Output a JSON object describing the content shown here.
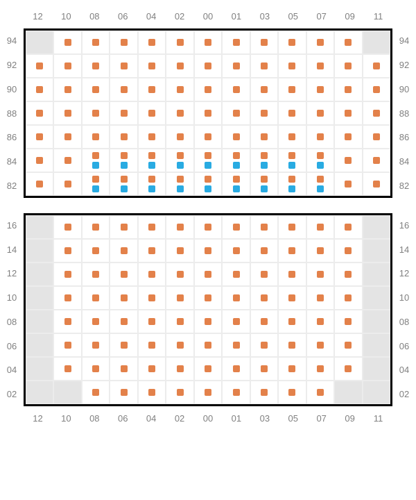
{
  "colors": {
    "orange": "#e3814a",
    "blue": "#29abe2",
    "disabled_bg": "#e4e4e4",
    "grid_line": "#ececec",
    "frame_border": "#000000",
    "label_text": "#808080",
    "background": "#ffffff"
  },
  "column_labels": [
    "12",
    "10",
    "08",
    "06",
    "04",
    "02",
    "00",
    "01",
    "03",
    "05",
    "07",
    "09",
    "11"
  ],
  "top_section": {
    "row_labels": [
      "94",
      "92",
      "90",
      "88",
      "86",
      "84",
      "82"
    ],
    "rows": [
      [
        {
          "d": true
        },
        {
          "s": [
            "o"
          ]
        },
        {
          "s": [
            "o"
          ]
        },
        {
          "s": [
            "o"
          ]
        },
        {
          "s": [
            "o"
          ]
        },
        {
          "s": [
            "o"
          ]
        },
        {
          "s": [
            "o"
          ]
        },
        {
          "s": [
            "o"
          ]
        },
        {
          "s": [
            "o"
          ]
        },
        {
          "s": [
            "o"
          ]
        },
        {
          "s": [
            "o"
          ]
        },
        {
          "s": [
            "o"
          ]
        },
        {
          "d": true
        }
      ],
      [
        {
          "s": [
            "o"
          ]
        },
        {
          "s": [
            "o"
          ]
        },
        {
          "s": [
            "o"
          ]
        },
        {
          "s": [
            "o"
          ]
        },
        {
          "s": [
            "o"
          ]
        },
        {
          "s": [
            "o"
          ]
        },
        {
          "s": [
            "o"
          ]
        },
        {
          "s": [
            "o"
          ]
        },
        {
          "s": [
            "o"
          ]
        },
        {
          "s": [
            "o"
          ]
        },
        {
          "s": [
            "o"
          ]
        },
        {
          "s": [
            "o"
          ]
        },
        {
          "s": [
            "o"
          ]
        }
      ],
      [
        {
          "s": [
            "o"
          ]
        },
        {
          "s": [
            "o"
          ]
        },
        {
          "s": [
            "o"
          ]
        },
        {
          "s": [
            "o"
          ]
        },
        {
          "s": [
            "o"
          ]
        },
        {
          "s": [
            "o"
          ]
        },
        {
          "s": [
            "o"
          ]
        },
        {
          "s": [
            "o"
          ]
        },
        {
          "s": [
            "o"
          ]
        },
        {
          "s": [
            "o"
          ]
        },
        {
          "s": [
            "o"
          ]
        },
        {
          "s": [
            "o"
          ]
        },
        {
          "s": [
            "o"
          ]
        }
      ],
      [
        {
          "s": [
            "o"
          ]
        },
        {
          "s": [
            "o"
          ]
        },
        {
          "s": [
            "o"
          ]
        },
        {
          "s": [
            "o"
          ]
        },
        {
          "s": [
            "o"
          ]
        },
        {
          "s": [
            "o"
          ]
        },
        {
          "s": [
            "o"
          ]
        },
        {
          "s": [
            "o"
          ]
        },
        {
          "s": [
            "o"
          ]
        },
        {
          "s": [
            "o"
          ]
        },
        {
          "s": [
            "o"
          ]
        },
        {
          "s": [
            "o"
          ]
        },
        {
          "s": [
            "o"
          ]
        }
      ],
      [
        {
          "s": [
            "o"
          ]
        },
        {
          "s": [
            "o"
          ]
        },
        {
          "s": [
            "o"
          ]
        },
        {
          "s": [
            "o"
          ]
        },
        {
          "s": [
            "o"
          ]
        },
        {
          "s": [
            "o"
          ]
        },
        {
          "s": [
            "o"
          ]
        },
        {
          "s": [
            "o"
          ]
        },
        {
          "s": [
            "o"
          ]
        },
        {
          "s": [
            "o"
          ]
        },
        {
          "s": [
            "o"
          ]
        },
        {
          "s": [
            "o"
          ]
        },
        {
          "s": [
            "o"
          ]
        }
      ],
      [
        {
          "s": [
            "o"
          ]
        },
        {
          "s": [
            "o"
          ]
        },
        {
          "s": [
            "o",
            "b"
          ]
        },
        {
          "s": [
            "o",
            "b"
          ]
        },
        {
          "s": [
            "o",
            "b"
          ]
        },
        {
          "s": [
            "o",
            "b"
          ]
        },
        {
          "s": [
            "o",
            "b"
          ]
        },
        {
          "s": [
            "o",
            "b"
          ]
        },
        {
          "s": [
            "o",
            "b"
          ]
        },
        {
          "s": [
            "o",
            "b"
          ]
        },
        {
          "s": [
            "o",
            "b"
          ]
        },
        {
          "s": [
            "o"
          ]
        },
        {
          "s": [
            "o"
          ]
        }
      ],
      [
        {
          "s": [
            "o"
          ]
        },
        {
          "s": [
            "o"
          ]
        },
        {
          "s": [
            "o",
            "b"
          ]
        },
        {
          "s": [
            "o",
            "b"
          ]
        },
        {
          "s": [
            "o",
            "b"
          ]
        },
        {
          "s": [
            "o",
            "b"
          ]
        },
        {
          "s": [
            "o",
            "b"
          ]
        },
        {
          "s": [
            "o",
            "b"
          ]
        },
        {
          "s": [
            "o",
            "b"
          ]
        },
        {
          "s": [
            "o",
            "b"
          ]
        },
        {
          "s": [
            "o",
            "b"
          ]
        },
        {
          "s": [
            "o"
          ]
        },
        {
          "s": [
            "o"
          ]
        }
      ]
    ]
  },
  "bottom_section": {
    "row_labels": [
      "16",
      "14",
      "12",
      "10",
      "08",
      "06",
      "04",
      "02"
    ],
    "rows": [
      [
        {
          "d": true
        },
        {
          "s": [
            "o"
          ]
        },
        {
          "s": [
            "o"
          ]
        },
        {
          "s": [
            "o"
          ]
        },
        {
          "s": [
            "o"
          ]
        },
        {
          "s": [
            "o"
          ]
        },
        {
          "s": [
            "o"
          ]
        },
        {
          "s": [
            "o"
          ]
        },
        {
          "s": [
            "o"
          ]
        },
        {
          "s": [
            "o"
          ]
        },
        {
          "s": [
            "o"
          ]
        },
        {
          "s": [
            "o"
          ]
        },
        {
          "d": true
        }
      ],
      [
        {
          "d": true
        },
        {
          "s": [
            "o"
          ]
        },
        {
          "s": [
            "o"
          ]
        },
        {
          "s": [
            "o"
          ]
        },
        {
          "s": [
            "o"
          ]
        },
        {
          "s": [
            "o"
          ]
        },
        {
          "s": [
            "o"
          ]
        },
        {
          "s": [
            "o"
          ]
        },
        {
          "s": [
            "o"
          ]
        },
        {
          "s": [
            "o"
          ]
        },
        {
          "s": [
            "o"
          ]
        },
        {
          "s": [
            "o"
          ]
        },
        {
          "d": true
        }
      ],
      [
        {
          "d": true
        },
        {
          "s": [
            "o"
          ]
        },
        {
          "s": [
            "o"
          ]
        },
        {
          "s": [
            "o"
          ]
        },
        {
          "s": [
            "o"
          ]
        },
        {
          "s": [
            "o"
          ]
        },
        {
          "s": [
            "o"
          ]
        },
        {
          "s": [
            "o"
          ]
        },
        {
          "s": [
            "o"
          ]
        },
        {
          "s": [
            "o"
          ]
        },
        {
          "s": [
            "o"
          ]
        },
        {
          "s": [
            "o"
          ]
        },
        {
          "d": true
        }
      ],
      [
        {
          "d": true
        },
        {
          "s": [
            "o"
          ]
        },
        {
          "s": [
            "o"
          ]
        },
        {
          "s": [
            "o"
          ]
        },
        {
          "s": [
            "o"
          ]
        },
        {
          "s": [
            "o"
          ]
        },
        {
          "s": [
            "o"
          ]
        },
        {
          "s": [
            "o"
          ]
        },
        {
          "s": [
            "o"
          ]
        },
        {
          "s": [
            "o"
          ]
        },
        {
          "s": [
            "o"
          ]
        },
        {
          "s": [
            "o"
          ]
        },
        {
          "d": true
        }
      ],
      [
        {
          "d": true
        },
        {
          "s": [
            "o"
          ]
        },
        {
          "s": [
            "o"
          ]
        },
        {
          "s": [
            "o"
          ]
        },
        {
          "s": [
            "o"
          ]
        },
        {
          "s": [
            "o"
          ]
        },
        {
          "s": [
            "o"
          ]
        },
        {
          "s": [
            "o"
          ]
        },
        {
          "s": [
            "o"
          ]
        },
        {
          "s": [
            "o"
          ]
        },
        {
          "s": [
            "o"
          ]
        },
        {
          "s": [
            "o"
          ]
        },
        {
          "d": true
        }
      ],
      [
        {
          "d": true
        },
        {
          "s": [
            "o"
          ]
        },
        {
          "s": [
            "o"
          ]
        },
        {
          "s": [
            "o"
          ]
        },
        {
          "s": [
            "o"
          ]
        },
        {
          "s": [
            "o"
          ]
        },
        {
          "s": [
            "o"
          ]
        },
        {
          "s": [
            "o"
          ]
        },
        {
          "s": [
            "o"
          ]
        },
        {
          "s": [
            "o"
          ]
        },
        {
          "s": [
            "o"
          ]
        },
        {
          "s": [
            "o"
          ]
        },
        {
          "d": true
        }
      ],
      [
        {
          "d": true
        },
        {
          "s": [
            "o"
          ]
        },
        {
          "s": [
            "o"
          ]
        },
        {
          "s": [
            "o"
          ]
        },
        {
          "s": [
            "o"
          ]
        },
        {
          "s": [
            "o"
          ]
        },
        {
          "s": [
            "o"
          ]
        },
        {
          "s": [
            "o"
          ]
        },
        {
          "s": [
            "o"
          ]
        },
        {
          "s": [
            "o"
          ]
        },
        {
          "s": [
            "o"
          ]
        },
        {
          "s": [
            "o"
          ]
        },
        {
          "d": true
        }
      ],
      [
        {
          "d": true
        },
        {
          "d": true
        },
        {
          "s": [
            "o"
          ]
        },
        {
          "s": [
            "o"
          ]
        },
        {
          "s": [
            "o"
          ]
        },
        {
          "s": [
            "o"
          ]
        },
        {
          "s": [
            "o"
          ]
        },
        {
          "s": [
            "o"
          ]
        },
        {
          "s": [
            "o"
          ]
        },
        {
          "s": [
            "o"
          ]
        },
        {
          "s": [
            "o"
          ]
        },
        {
          "d": true
        },
        {
          "d": true
        }
      ]
    ]
  }
}
